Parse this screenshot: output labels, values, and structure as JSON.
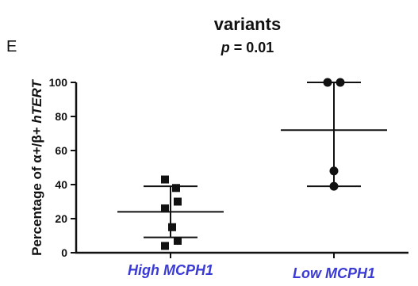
{
  "panel_label": "E",
  "chart_data": {
    "type": "scatter",
    "title": "variants",
    "subtitle_p": "p",
    "subtitle_rest": " = 0.01",
    "ylabel_prefix": "Percentage of α+/β+ ",
    "ylabel_italic": "hTERT",
    "xlabel": "",
    "ylim": [
      0,
      100
    ],
    "yticks": [
      "0",
      "20",
      "40",
      "60",
      "80",
      "100"
    ],
    "categories": [
      "High MCPH1",
      "Low MCPH1"
    ],
    "category_color": "#3a3ad6",
    "series": [
      {
        "category": "High MCPH1",
        "values": [
          43,
          38,
          30,
          26,
          15,
          7,
          4
        ],
        "mean": 24,
        "sd_low": 9,
        "sd_high": 39
      },
      {
        "category": "Low MCPH1",
        "values": [
          100,
          100,
          48,
          39
        ],
        "mean": 72,
        "sd_low": 39,
        "sd_high": 100
      }
    ],
    "grid": false,
    "legend": "none"
  }
}
